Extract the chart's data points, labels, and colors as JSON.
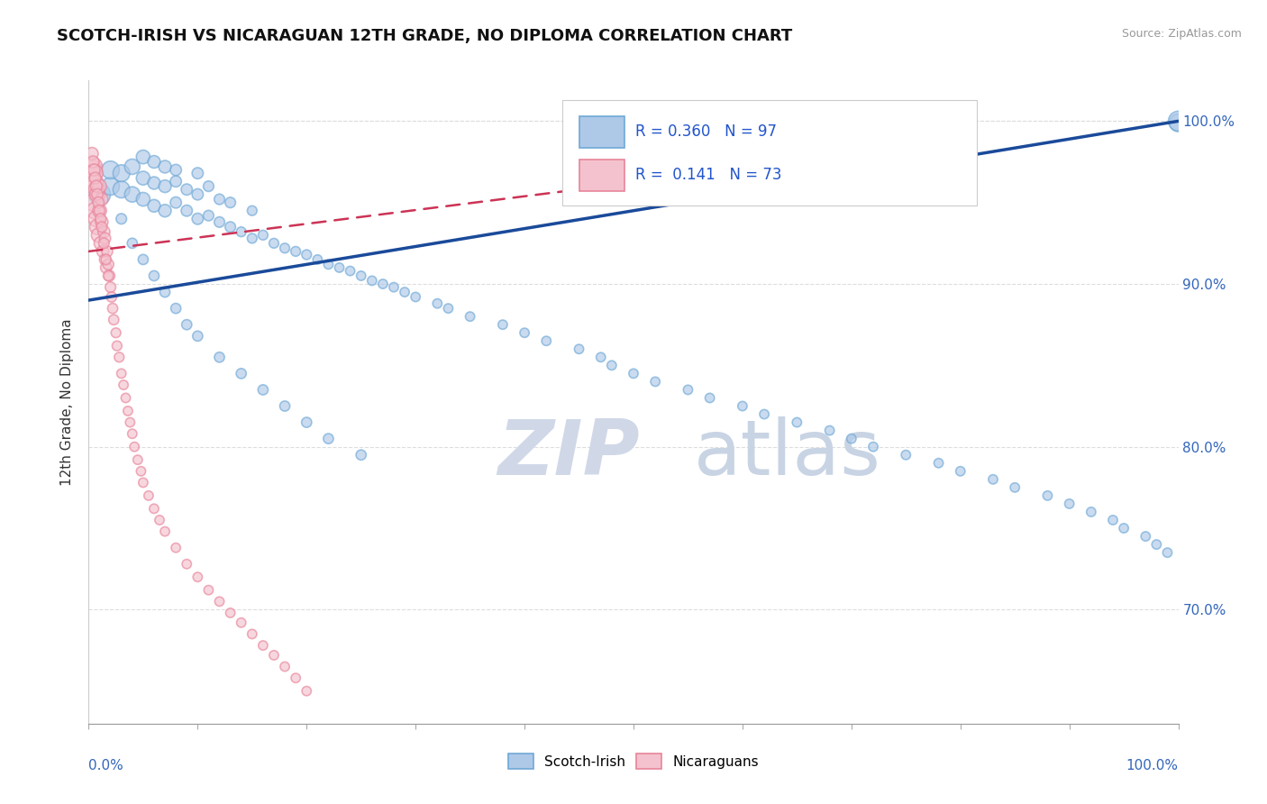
{
  "title": "SCOTCH-IRISH VS NICARAGUAN 12TH GRADE, NO DIPLOMA CORRELATION CHART",
  "source": "Source: ZipAtlas.com",
  "ylabel": "12th Grade, No Diploma",
  "legend_blue_R": "0.360",
  "legend_blue_N": "97",
  "legend_pink_R": "0.141",
  "legend_pink_N": "73",
  "xlim": [
    0.0,
    1.0
  ],
  "ylim": [
    0.63,
    1.025
  ],
  "yticks": [
    0.7,
    0.8,
    0.9,
    1.0
  ],
  "ytick_labels": [
    "70.0%",
    "80.0%",
    "90.0%",
    "100.0%"
  ],
  "blue_face": "#aec9e8",
  "blue_edge": "#6fa8d6",
  "pink_face": "#f4c2ce",
  "pink_edge": "#e8849a",
  "trend_blue_color": "#1a4a9a",
  "trend_pink_color": "#cc3355",
  "grid_color": "#dddddd",
  "background_color": "#ffffff",
  "watermark_zip_color": "#d0d8e8",
  "watermark_atlas_color": "#c8d4e4",
  "blue_x": [
    0.01,
    0.02,
    0.02,
    0.03,
    0.03,
    0.04,
    0.04,
    0.05,
    0.05,
    0.05,
    0.06,
    0.06,
    0.06,
    0.07,
    0.07,
    0.07,
    0.08,
    0.08,
    0.08,
    0.09,
    0.09,
    0.1,
    0.1,
    0.1,
    0.11,
    0.11,
    0.12,
    0.12,
    0.13,
    0.13,
    0.14,
    0.15,
    0.15,
    0.16,
    0.17,
    0.18,
    0.19,
    0.2,
    0.21,
    0.22,
    0.23,
    0.24,
    0.25,
    0.26,
    0.27,
    0.28,
    0.29,
    0.3,
    0.32,
    0.33,
    0.35,
    0.38,
    0.4,
    0.42,
    0.45,
    0.47,
    0.48,
    0.5,
    0.52,
    0.55,
    0.57,
    0.6,
    0.62,
    0.65,
    0.68,
    0.7,
    0.72,
    0.75,
    0.78,
    0.8,
    0.83,
    0.85,
    0.88,
    0.9,
    0.92,
    0.94,
    0.95,
    0.97,
    0.98,
    0.99,
    1.0,
    1.0,
    0.03,
    0.04,
    0.05,
    0.06,
    0.07,
    0.08,
    0.09,
    0.1,
    0.12,
    0.14,
    0.16,
    0.18,
    0.2,
    0.22,
    0.25
  ],
  "blue_y": [
    0.955,
    0.96,
    0.97,
    0.958,
    0.968,
    0.955,
    0.972,
    0.952,
    0.965,
    0.978,
    0.948,
    0.962,
    0.975,
    0.945,
    0.96,
    0.972,
    0.95,
    0.963,
    0.97,
    0.945,
    0.958,
    0.94,
    0.955,
    0.968,
    0.942,
    0.96,
    0.938,
    0.952,
    0.935,
    0.95,
    0.932,
    0.928,
    0.945,
    0.93,
    0.925,
    0.922,
    0.92,
    0.918,
    0.915,
    0.912,
    0.91,
    0.908,
    0.905,
    0.902,
    0.9,
    0.898,
    0.895,
    0.892,
    0.888,
    0.885,
    0.88,
    0.875,
    0.87,
    0.865,
    0.86,
    0.855,
    0.85,
    0.845,
    0.84,
    0.835,
    0.83,
    0.825,
    0.82,
    0.815,
    0.81,
    0.805,
    0.8,
    0.795,
    0.79,
    0.785,
    0.78,
    0.775,
    0.77,
    0.765,
    0.76,
    0.755,
    0.75,
    0.745,
    0.74,
    0.735,
    0.999,
    1.0,
    0.94,
    0.925,
    0.915,
    0.905,
    0.895,
    0.885,
    0.875,
    0.868,
    0.855,
    0.845,
    0.835,
    0.825,
    0.815,
    0.805,
    0.795
  ],
  "blue_sizes": [
    300,
    200,
    200,
    180,
    180,
    150,
    150,
    120,
    120,
    120,
    100,
    100,
    100,
    100,
    100,
    100,
    80,
    80,
    80,
    80,
    80,
    80,
    80,
    80,
    70,
    70,
    70,
    70,
    70,
    70,
    60,
    60,
    60,
    60,
    60,
    60,
    60,
    60,
    55,
    55,
    55,
    55,
    55,
    55,
    55,
    55,
    55,
    55,
    55,
    55,
    55,
    55,
    55,
    55,
    55,
    55,
    55,
    55,
    55,
    55,
    55,
    55,
    55,
    55,
    55,
    55,
    55,
    55,
    55,
    55,
    55,
    55,
    55,
    55,
    55,
    55,
    55,
    55,
    55,
    55,
    200,
    250,
    70,
    65,
    65,
    65,
    65,
    65,
    65,
    65,
    65,
    65,
    65,
    65,
    65,
    65,
    65
  ],
  "pink_x": [
    0.002,
    0.003,
    0.004,
    0.004,
    0.005,
    0.005,
    0.006,
    0.006,
    0.007,
    0.007,
    0.008,
    0.008,
    0.009,
    0.01,
    0.01,
    0.011,
    0.012,
    0.012,
    0.013,
    0.014,
    0.015,
    0.015,
    0.016,
    0.017,
    0.018,
    0.019,
    0.02,
    0.021,
    0.022,
    0.023,
    0.025,
    0.026,
    0.028,
    0.03,
    0.032,
    0.034,
    0.036,
    0.038,
    0.04,
    0.042,
    0.045,
    0.048,
    0.05,
    0.055,
    0.06,
    0.065,
    0.07,
    0.08,
    0.09,
    0.1,
    0.11,
    0.12,
    0.13,
    0.14,
    0.15,
    0.16,
    0.17,
    0.18,
    0.19,
    0.2,
    0.003,
    0.004,
    0.005,
    0.006,
    0.007,
    0.008,
    0.009,
    0.01,
    0.011,
    0.012,
    0.014,
    0.016,
    0.018
  ],
  "pink_y": [
    0.965,
    0.97,
    0.958,
    0.972,
    0.95,
    0.968,
    0.945,
    0.962,
    0.94,
    0.958,
    0.935,
    0.955,
    0.93,
    0.945,
    0.96,
    0.925,
    0.938,
    0.952,
    0.92,
    0.932,
    0.915,
    0.928,
    0.91,
    0.92,
    0.912,
    0.905,
    0.898,
    0.892,
    0.885,
    0.878,
    0.87,
    0.862,
    0.855,
    0.845,
    0.838,
    0.83,
    0.822,
    0.815,
    0.808,
    0.8,
    0.792,
    0.785,
    0.778,
    0.77,
    0.762,
    0.755,
    0.748,
    0.738,
    0.728,
    0.72,
    0.712,
    0.705,
    0.698,
    0.692,
    0.685,
    0.678,
    0.672,
    0.665,
    0.658,
    0.65,
    0.98,
    0.975,
    0.97,
    0.965,
    0.96,
    0.955,
    0.95,
    0.945,
    0.94,
    0.935,
    0.925,
    0.915,
    0.905
  ],
  "pink_sizes": [
    250,
    250,
    220,
    220,
    200,
    200,
    180,
    180,
    160,
    160,
    150,
    150,
    130,
    120,
    120,
    110,
    100,
    100,
    90,
    90,
    80,
    80,
    80,
    75,
    75,
    75,
    70,
    65,
    65,
    65,
    60,
    60,
    60,
    55,
    55,
    55,
    55,
    55,
    55,
    55,
    55,
    55,
    55,
    55,
    55,
    55,
    55,
    55,
    55,
    55,
    55,
    55,
    55,
    55,
    55,
    55,
    55,
    55,
    55,
    55,
    100,
    90,
    90,
    85,
    85,
    80,
    80,
    75,
    75,
    70,
    70,
    65,
    65
  ],
  "blue_trend_x0": 0.0,
  "blue_trend_x1": 1.0,
  "blue_trend_y0": 0.89,
  "blue_trend_y1": 1.0,
  "pink_trend_x0": 0.0,
  "pink_trend_x1": 0.65,
  "pink_trend_y0": 0.92,
  "pink_trend_y1": 0.975
}
